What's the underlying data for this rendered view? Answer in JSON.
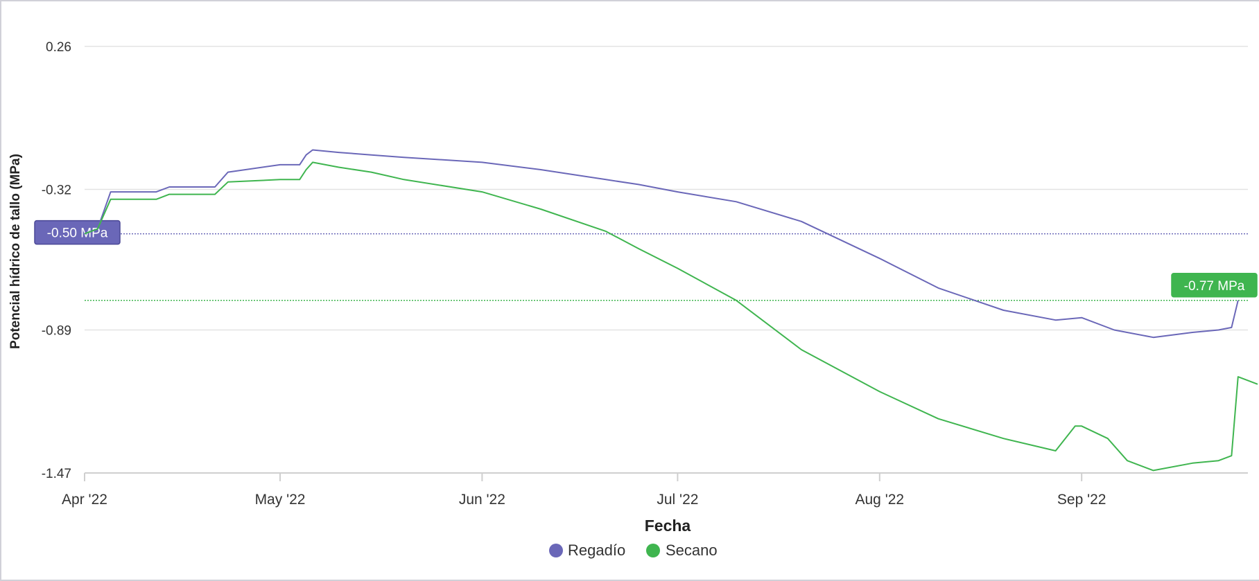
{
  "chart_data": {
    "type": "line",
    "xlabel": "Fecha",
    "ylabel": "Potencial hídrico de tallo (MPa)",
    "x_ticks": [
      "Apr '22",
      "May '22",
      "Jun '22",
      "Jul '22",
      "Aug '22",
      "Sep '22"
    ],
    "x_tick_dates": [
      "2022-04-01",
      "2022-05-01",
      "2022-06-01",
      "2022-07-01",
      "2022-08-01",
      "2022-09-01"
    ],
    "y_ticks": [
      0.26,
      -0.32,
      -0.89,
      -1.47
    ],
    "ylim": [
      -1.47,
      0.26
    ],
    "xlim": [
      "2022-04-01",
      "2022-09-30"
    ],
    "grid": "horizontal",
    "legend_position": "bottom-center",
    "reference_lines": [
      {
        "value": -0.5,
        "label": "-0.50 MPa",
        "color": "#6a67b8",
        "label_side": "left"
      },
      {
        "value": -0.77,
        "label": "-0.77 MPa",
        "color": "#3fb54f",
        "label_side": "right"
      }
    ],
    "series": [
      {
        "name": "Regadío",
        "color": "#6a67b8",
        "points": [
          [
            "2022-04-01",
            -0.5
          ],
          [
            "2022-04-03",
            -0.48
          ],
          [
            "2022-04-05",
            -0.33
          ],
          [
            "2022-04-12",
            -0.33
          ],
          [
            "2022-04-14",
            -0.31
          ],
          [
            "2022-04-21",
            -0.31
          ],
          [
            "2022-04-23",
            -0.25
          ],
          [
            "2022-05-01",
            -0.22
          ],
          [
            "2022-05-04",
            -0.22
          ],
          [
            "2022-05-05",
            -0.18
          ],
          [
            "2022-05-06",
            -0.16
          ],
          [
            "2022-05-10",
            -0.17
          ],
          [
            "2022-05-15",
            -0.18
          ],
          [
            "2022-05-20",
            -0.19
          ],
          [
            "2022-06-01",
            -0.21
          ],
          [
            "2022-06-10",
            -0.24
          ],
          [
            "2022-06-20",
            -0.28
          ],
          [
            "2022-06-25",
            -0.3
          ],
          [
            "2022-07-01",
            -0.33
          ],
          [
            "2022-07-10",
            -0.37
          ],
          [
            "2022-07-20",
            -0.45
          ],
          [
            "2022-08-01",
            -0.6
          ],
          [
            "2022-08-10",
            -0.72
          ],
          [
            "2022-08-20",
            -0.81
          ],
          [
            "2022-08-28",
            -0.85
          ],
          [
            "2022-09-01",
            -0.84
          ],
          [
            "2022-09-06",
            -0.89
          ],
          [
            "2022-09-12",
            -0.92
          ],
          [
            "2022-09-15",
            -0.91
          ],
          [
            "2022-09-18",
            -0.9
          ],
          [
            "2022-09-22",
            -0.89
          ],
          [
            "2022-09-24",
            -0.88
          ],
          [
            "2022-09-25",
            -0.77
          ]
        ]
      },
      {
        "name": "Secano",
        "color": "#3fb54f",
        "points": [
          [
            "2022-04-01",
            -0.5
          ],
          [
            "2022-04-03",
            -0.48
          ],
          [
            "2022-04-05",
            -0.36
          ],
          [
            "2022-04-12",
            -0.36
          ],
          [
            "2022-04-14",
            -0.34
          ],
          [
            "2022-04-21",
            -0.34
          ],
          [
            "2022-04-23",
            -0.29
          ],
          [
            "2022-05-01",
            -0.28
          ],
          [
            "2022-05-04",
            -0.28
          ],
          [
            "2022-05-05",
            -0.24
          ],
          [
            "2022-05-06",
            -0.21
          ],
          [
            "2022-05-10",
            -0.23
          ],
          [
            "2022-05-15",
            -0.25
          ],
          [
            "2022-05-20",
            -0.28
          ],
          [
            "2022-06-01",
            -0.33
          ],
          [
            "2022-06-10",
            -0.4
          ],
          [
            "2022-06-20",
            -0.49
          ],
          [
            "2022-06-25",
            -0.56
          ],
          [
            "2022-07-01",
            -0.64
          ],
          [
            "2022-07-10",
            -0.77
          ],
          [
            "2022-07-20",
            -0.97
          ],
          [
            "2022-08-01",
            -1.14
          ],
          [
            "2022-08-10",
            -1.25
          ],
          [
            "2022-08-20",
            -1.33
          ],
          [
            "2022-08-28",
            -1.38
          ],
          [
            "2022-08-31",
            -1.28
          ],
          [
            "2022-09-01",
            -1.28
          ],
          [
            "2022-09-05",
            -1.33
          ],
          [
            "2022-09-08",
            -1.42
          ],
          [
            "2022-09-12",
            -1.46
          ],
          [
            "2022-09-18",
            -1.43
          ],
          [
            "2022-09-22",
            -1.42
          ],
          [
            "2022-09-24",
            -1.4
          ],
          [
            "2022-09-25",
            -1.08
          ],
          [
            "2022-09-28",
            -1.11
          ]
        ]
      }
    ]
  }
}
